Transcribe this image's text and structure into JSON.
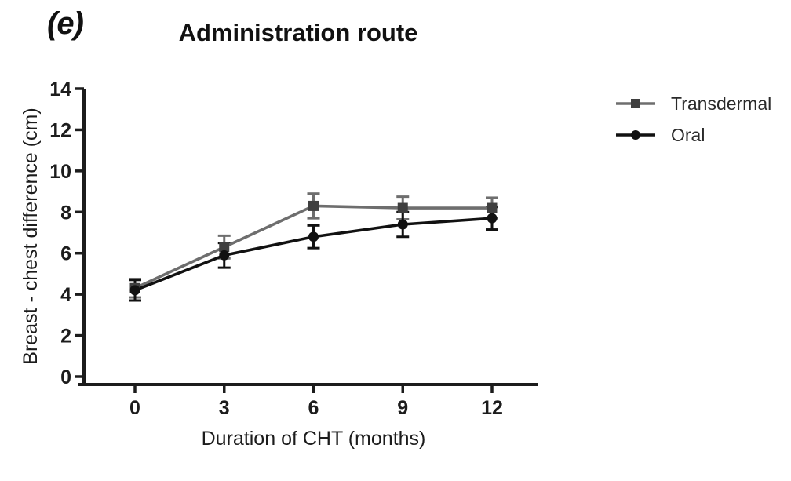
{
  "figure": {
    "panel_label": "(e)"
  },
  "chart_data": {
    "type": "line",
    "title": "Administration route",
    "xlabel": "Duration of CHT (months)",
    "ylabel": "Breast - chest difference (cm)",
    "x": [
      0,
      3,
      6,
      9,
      12
    ],
    "xticks": [
      0,
      3,
      6,
      9,
      12
    ],
    "yticks": [
      0,
      2,
      4,
      6,
      8,
      10,
      12,
      14
    ],
    "ylim": [
      0,
      14
    ],
    "grid": false,
    "error_bars": true,
    "legend_position": "right-outside",
    "axis_color": "#1c1c1c",
    "series": [
      {
        "name": "Transdermal",
        "marker": "square",
        "line_color": "#6e6e6e",
        "marker_color": "#3f3f3f",
        "values": [
          4.3,
          6.3,
          8.3,
          8.2,
          8.2
        ],
        "errors": [
          0.45,
          0.55,
          0.6,
          0.55,
          0.5
        ]
      },
      {
        "name": "Oral",
        "marker": "circle",
        "line_color": "#111111",
        "marker_color": "#111111",
        "values": [
          4.2,
          5.9,
          6.8,
          7.4,
          7.7
        ],
        "errors": [
          0.5,
          0.6,
          0.55,
          0.6,
          0.55
        ]
      }
    ]
  }
}
